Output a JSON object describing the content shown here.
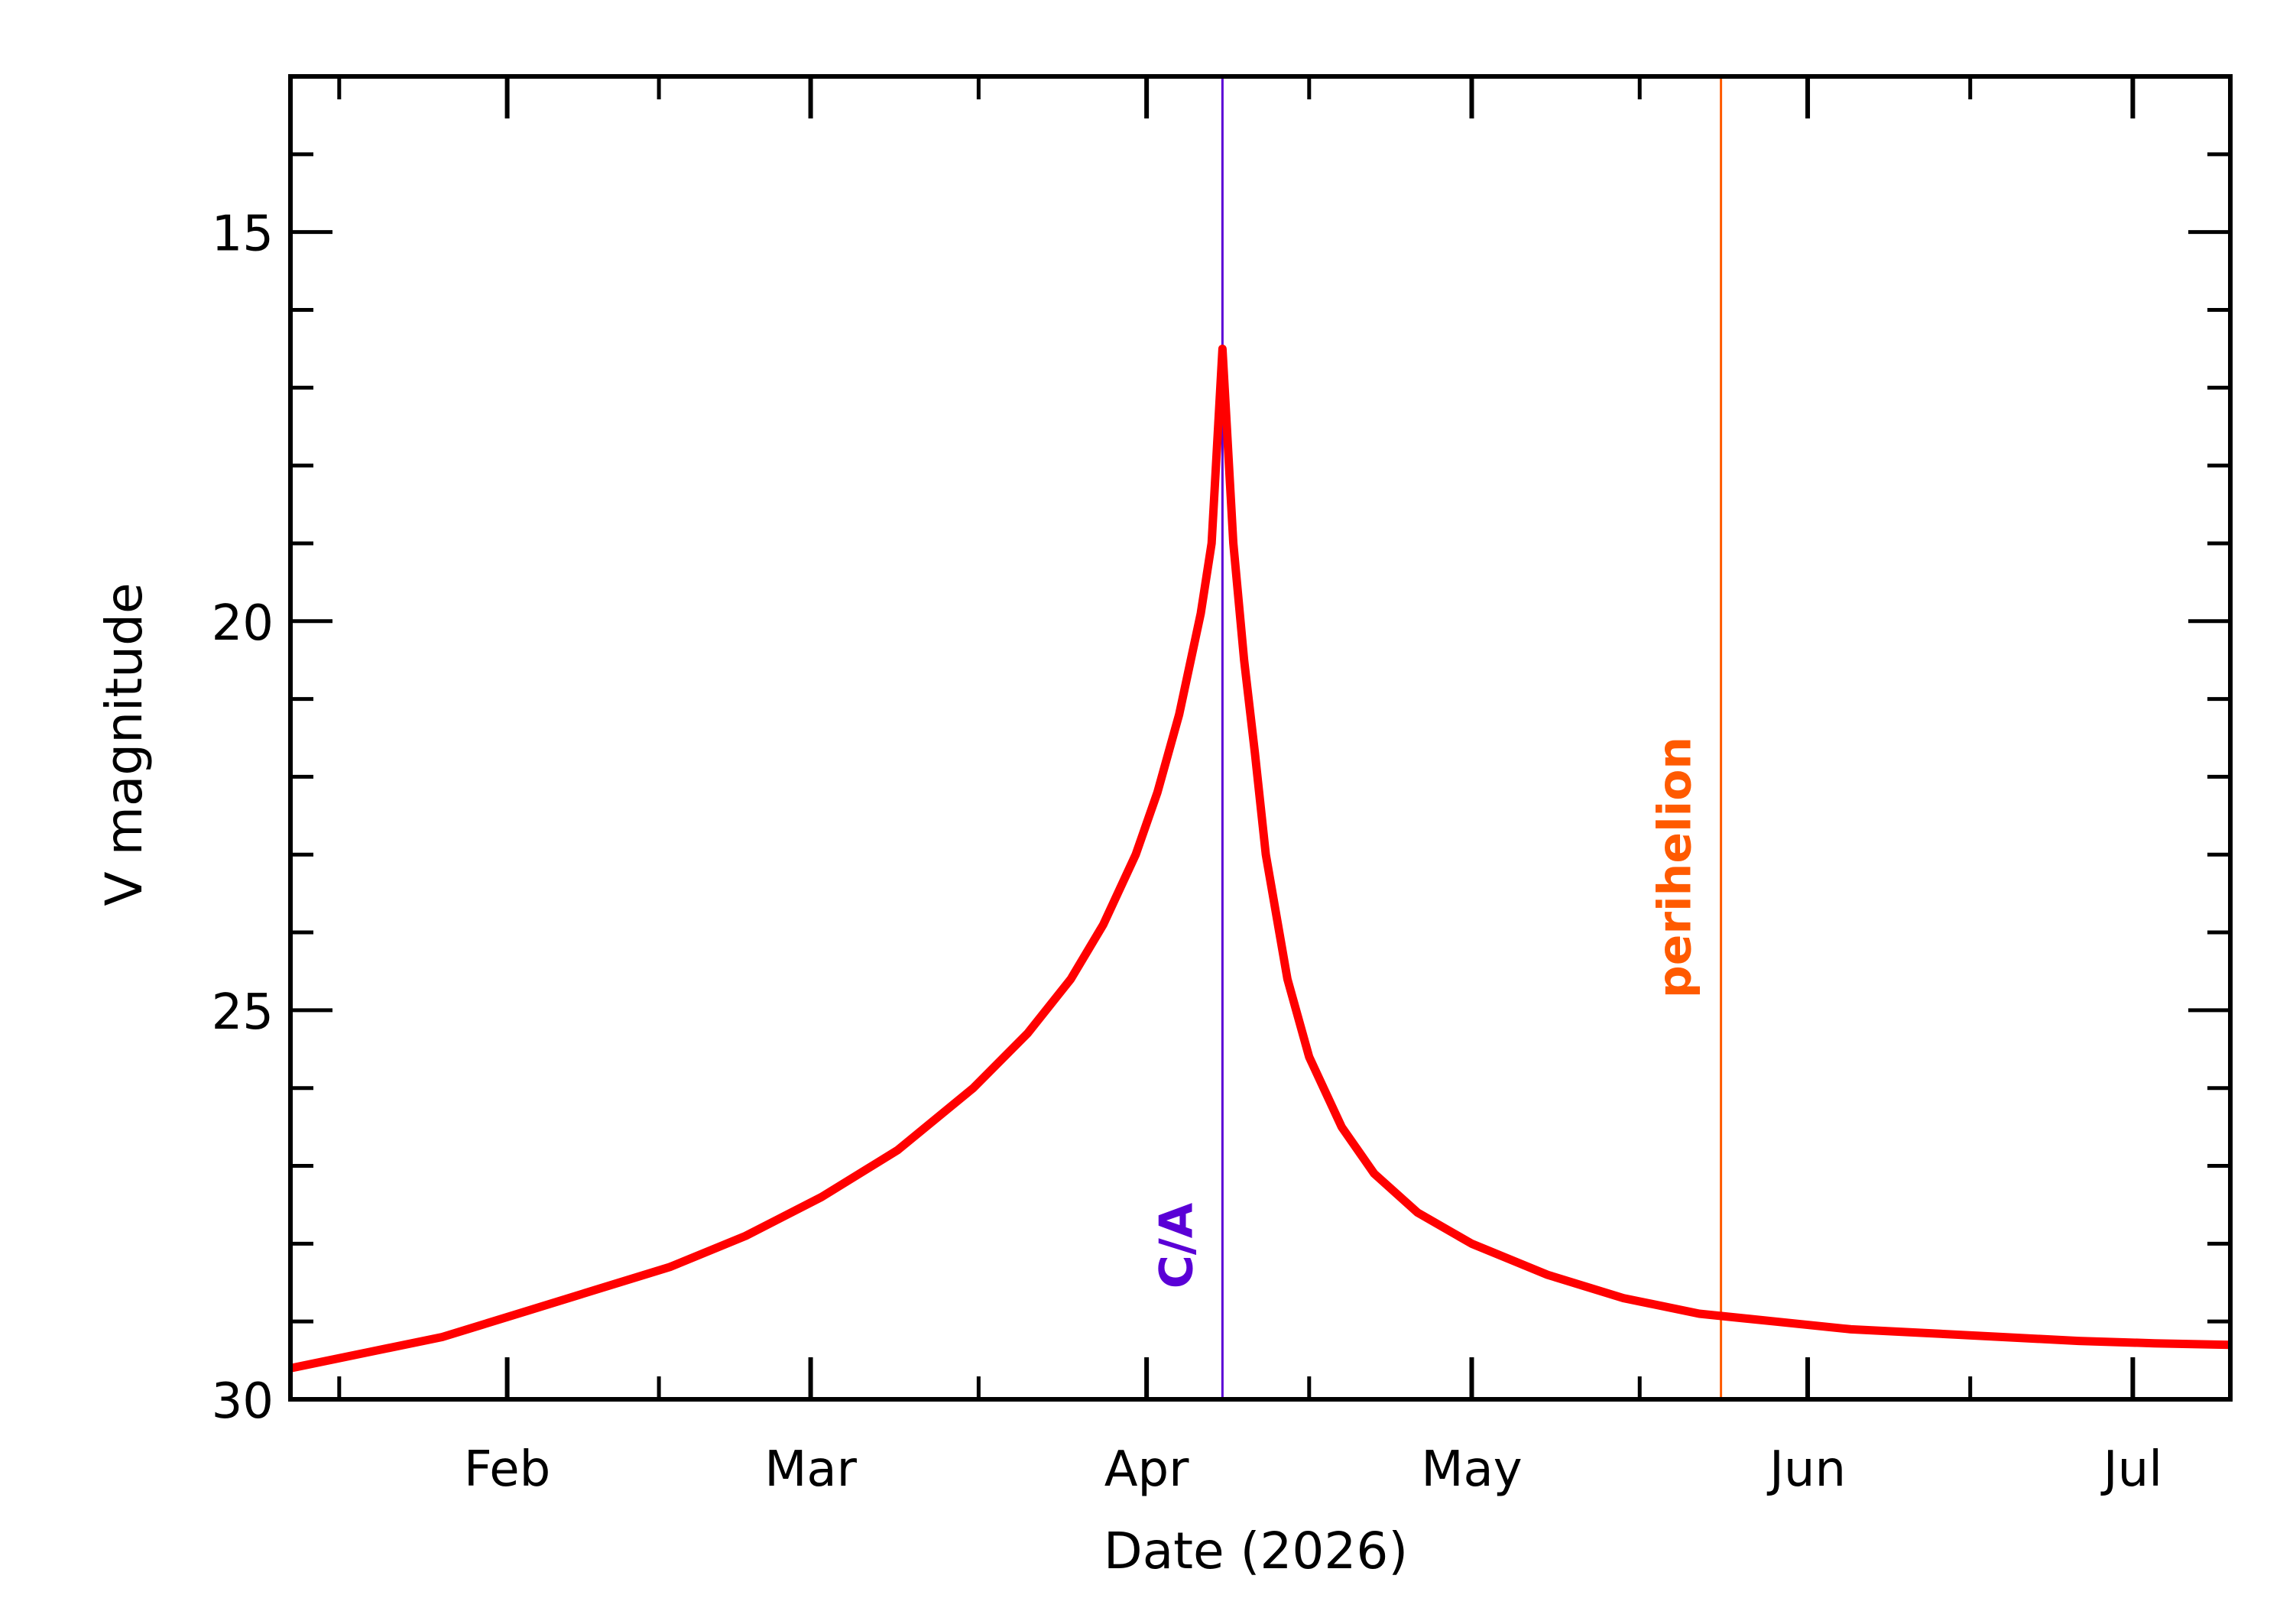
{
  "chart_data": {
    "type": "line",
    "title": "",
    "xlabel": "Date (2026)",
    "ylabel": "V magnitude",
    "y_inverted": true,
    "ylim": [
      30,
      13
    ],
    "xlim": [
      "2026-01-12",
      "2026-07-10"
    ],
    "grid": false,
    "x_ticks": [
      {
        "label": "Feb",
        "date": "2026-02-01"
      },
      {
        "label": "Mar",
        "date": "2026-03-01"
      },
      {
        "label": "Apr",
        "date": "2026-04-01"
      },
      {
        "label": "May",
        "date": "2026-05-01"
      },
      {
        "label": "Jun",
        "date": "2026-06-01"
      },
      {
        "label": "Jul",
        "date": "2026-07-01"
      }
    ],
    "y_ticks": [
      "15",
      "20",
      "25",
      "30"
    ],
    "series": [
      {
        "color": "#ff0000",
        "x": [
          "2026-01-12",
          "2026-01-19",
          "2026-01-26",
          "2026-02-02",
          "2026-02-09",
          "2026-02-16",
          "2026-02-23",
          "2026-03-02",
          "2026-03-09",
          "2026-03-16",
          "2026-03-21",
          "2026-03-25",
          "2026-03-28",
          "2026-03-31",
          "2026-04-02",
          "2026-04-04",
          "2026-04-06",
          "2026-04-07",
          "2026-04-08",
          "2026-04-09",
          "2026-04-10",
          "2026-04-11",
          "2026-04-12",
          "2026-04-14",
          "2026-04-16",
          "2026-04-19",
          "2026-04-22",
          "2026-04-26",
          "2026-05-01",
          "2026-05-08",
          "2026-05-15",
          "2026-05-22",
          "2026-05-29",
          "2026-06-05",
          "2026-06-12",
          "2026-06-19",
          "2026-06-26",
          "2026-07-03",
          "2026-07-10"
        ],
        "y": [
          29.6,
          29.4,
          29.2,
          28.9,
          28.6,
          28.3,
          27.9,
          27.4,
          26.8,
          26.0,
          25.3,
          24.6,
          23.9,
          23.0,
          22.2,
          21.2,
          19.9,
          19.0,
          16.5,
          19.0,
          20.5,
          21.7,
          23.0,
          24.6,
          25.6,
          26.5,
          27.1,
          27.6,
          28.0,
          28.4,
          28.7,
          28.9,
          29.0,
          29.1,
          29.15,
          29.2,
          29.25,
          29.28,
          29.3
        ]
      }
    ],
    "annotations": [
      {
        "label": "C/A",
        "date": "2026-04-08",
        "color": "#5a00d6"
      },
      {
        "label": "perihelion",
        "date": "2026-05-24",
        "color": "#ff5a00"
      }
    ]
  }
}
